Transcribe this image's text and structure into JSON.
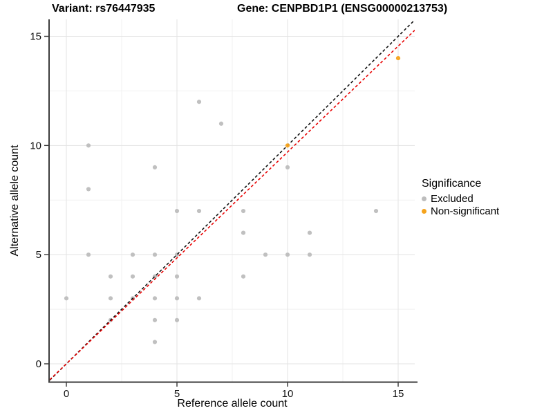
{
  "titles": {
    "variant": "Variant: rs76447935",
    "gene": "Gene: CENPBD1P1 (ENSG00000213753)"
  },
  "chart_data": {
    "type": "scatter",
    "xlabel": "Reference allele count",
    "ylabel": "Alternative allele count",
    "xlim": [
      -0.75,
      15.75
    ],
    "ylim": [
      -0.75,
      15.75
    ],
    "x_ticks": [
      0,
      5,
      10,
      15
    ],
    "y_ticks": [
      0,
      5,
      10,
      15
    ],
    "x_minor_ticks": [
      2.5,
      7.5,
      12.5
    ],
    "y_minor_ticks": [
      2.5,
      7.5,
      12.5
    ],
    "grid": "major and minor gridlines on white background",
    "legend": {
      "title": "Significance",
      "position": "right",
      "entries": [
        {
          "label": "Excluded",
          "color": "#BDBDBD"
        },
        {
          "label": "Non-significant",
          "color": "#F5A31C"
        }
      ]
    },
    "series": [
      {
        "name": "Excluded",
        "color": "#BDBDBD",
        "below_lines": true,
        "points": [
          [
            0,
            3
          ],
          [
            1,
            5
          ],
          [
            1,
            8
          ],
          [
            1,
            10
          ],
          [
            2,
            2
          ],
          [
            2,
            3
          ],
          [
            2,
            4
          ],
          [
            3,
            3
          ],
          [
            3,
            4
          ],
          [
            3,
            5
          ],
          [
            4,
            1
          ],
          [
            4,
            2
          ],
          [
            4,
            3
          ],
          [
            4,
            4
          ],
          [
            4,
            5
          ],
          [
            4,
            9
          ],
          [
            5,
            2
          ],
          [
            5,
            3
          ],
          [
            5,
            4
          ],
          [
            5,
            5
          ],
          [
            5,
            7
          ],
          [
            6,
            3
          ],
          [
            6,
            7
          ],
          [
            6,
            12
          ],
          [
            7,
            11
          ],
          [
            8,
            4
          ],
          [
            8,
            6
          ],
          [
            8,
            7
          ],
          [
            9,
            5
          ],
          [
            10,
            5
          ],
          [
            10,
            9
          ],
          [
            11,
            5
          ],
          [
            11,
            6
          ],
          [
            14,
            7
          ]
        ]
      },
      {
        "name": "Non-significant",
        "color": "#F5A31C",
        "below_lines": false,
        "points": [
          [
            10,
            10
          ],
          [
            15,
            14
          ]
        ]
      }
    ],
    "lines": [
      {
        "name": "identity-line",
        "color": "#111111",
        "style": "dashed",
        "slope": 1,
        "intercept": 0
      },
      {
        "name": "expected-ratio-line",
        "color": "#E80000",
        "style": "dashed",
        "slope": 0.97,
        "intercept": 0
      }
    ]
  }
}
